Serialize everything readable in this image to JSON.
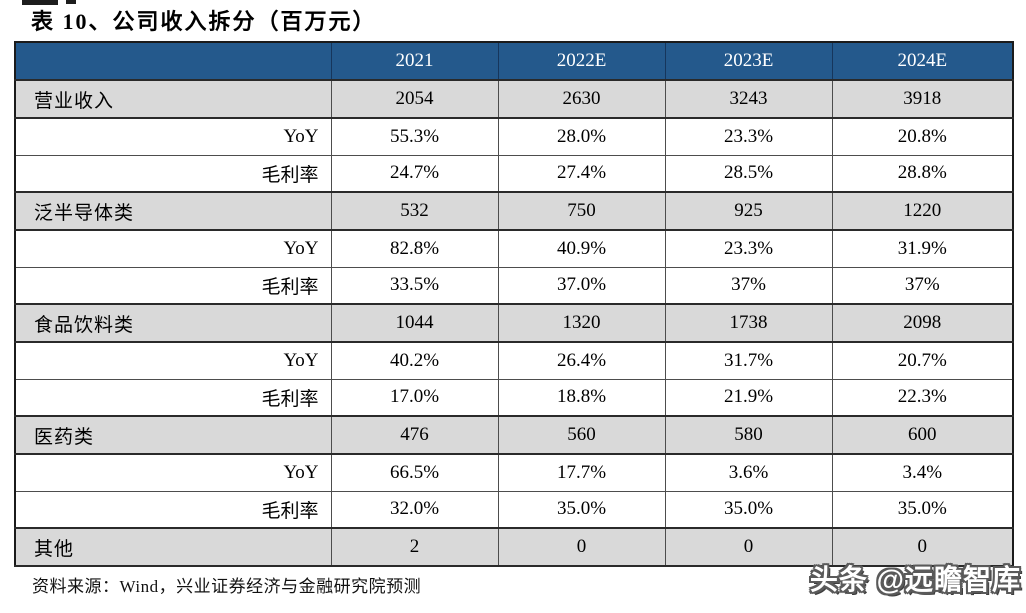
{
  "title": "表 10、公司收入拆分（百万元）",
  "source_note": "资料来源：Wind，兴业证券经济与金融研究院预测",
  "watermark": "头条 @远瞻智库",
  "colors": {
    "header_bg": "#24598c",
    "header_text": "#ffffff",
    "shaded_row_bg": "#d9d9d9",
    "row_bg": "#ffffff",
    "border": "#4d4d4d",
    "outer_border": "#1b1b1b"
  },
  "chart_data": {
    "type": "table",
    "title": "表 10、公司收入拆分（百万元）",
    "columns": [
      "",
      "2021",
      "2022E",
      "2023E",
      "2024E"
    ],
    "rows": [
      {
        "label": "营业收入",
        "align": "left",
        "shaded": true,
        "values": [
          "2054",
          "2630",
          "3243",
          "3918"
        ]
      },
      {
        "label": "YoY",
        "align": "right",
        "shaded": false,
        "values": [
          "55.3%",
          "28.0%",
          "23.3%",
          "20.8%"
        ]
      },
      {
        "label": "毛利率",
        "align": "right",
        "shaded": false,
        "values": [
          "24.7%",
          "27.4%",
          "28.5%",
          "28.8%"
        ]
      },
      {
        "label": "泛半导体类",
        "align": "left",
        "shaded": true,
        "values": [
          "532",
          "750",
          "925",
          "1220"
        ]
      },
      {
        "label": "YoY",
        "align": "right",
        "shaded": false,
        "values": [
          "82.8%",
          "40.9%",
          "23.3%",
          "31.9%"
        ]
      },
      {
        "label": "毛利率",
        "align": "right",
        "shaded": false,
        "values": [
          "33.5%",
          "37.0%",
          "37%",
          "37%"
        ]
      },
      {
        "label": "食品饮料类",
        "align": "left",
        "shaded": true,
        "values": [
          "1044",
          "1320",
          "1738",
          "2098"
        ]
      },
      {
        "label": "YoY",
        "align": "right",
        "shaded": false,
        "values": [
          "40.2%",
          "26.4%",
          "31.7%",
          "20.7%"
        ]
      },
      {
        "label": "毛利率",
        "align": "right",
        "shaded": false,
        "values": [
          "17.0%",
          "18.8%",
          "21.9%",
          "22.3%"
        ]
      },
      {
        "label": "医药类",
        "align": "left",
        "shaded": true,
        "values": [
          "476",
          "560",
          "580",
          "600"
        ]
      },
      {
        "label": "YoY",
        "align": "right",
        "shaded": false,
        "values": [
          "66.5%",
          "17.7%",
          "3.6%",
          "3.4%"
        ]
      },
      {
        "label": "毛利率",
        "align": "right",
        "shaded": false,
        "values": [
          "32.0%",
          "35.0%",
          "35.0%",
          "35.0%"
        ]
      },
      {
        "label": "其他",
        "align": "left",
        "shaded": true,
        "values": [
          "2",
          "0",
          "0",
          "0"
        ]
      }
    ]
  }
}
